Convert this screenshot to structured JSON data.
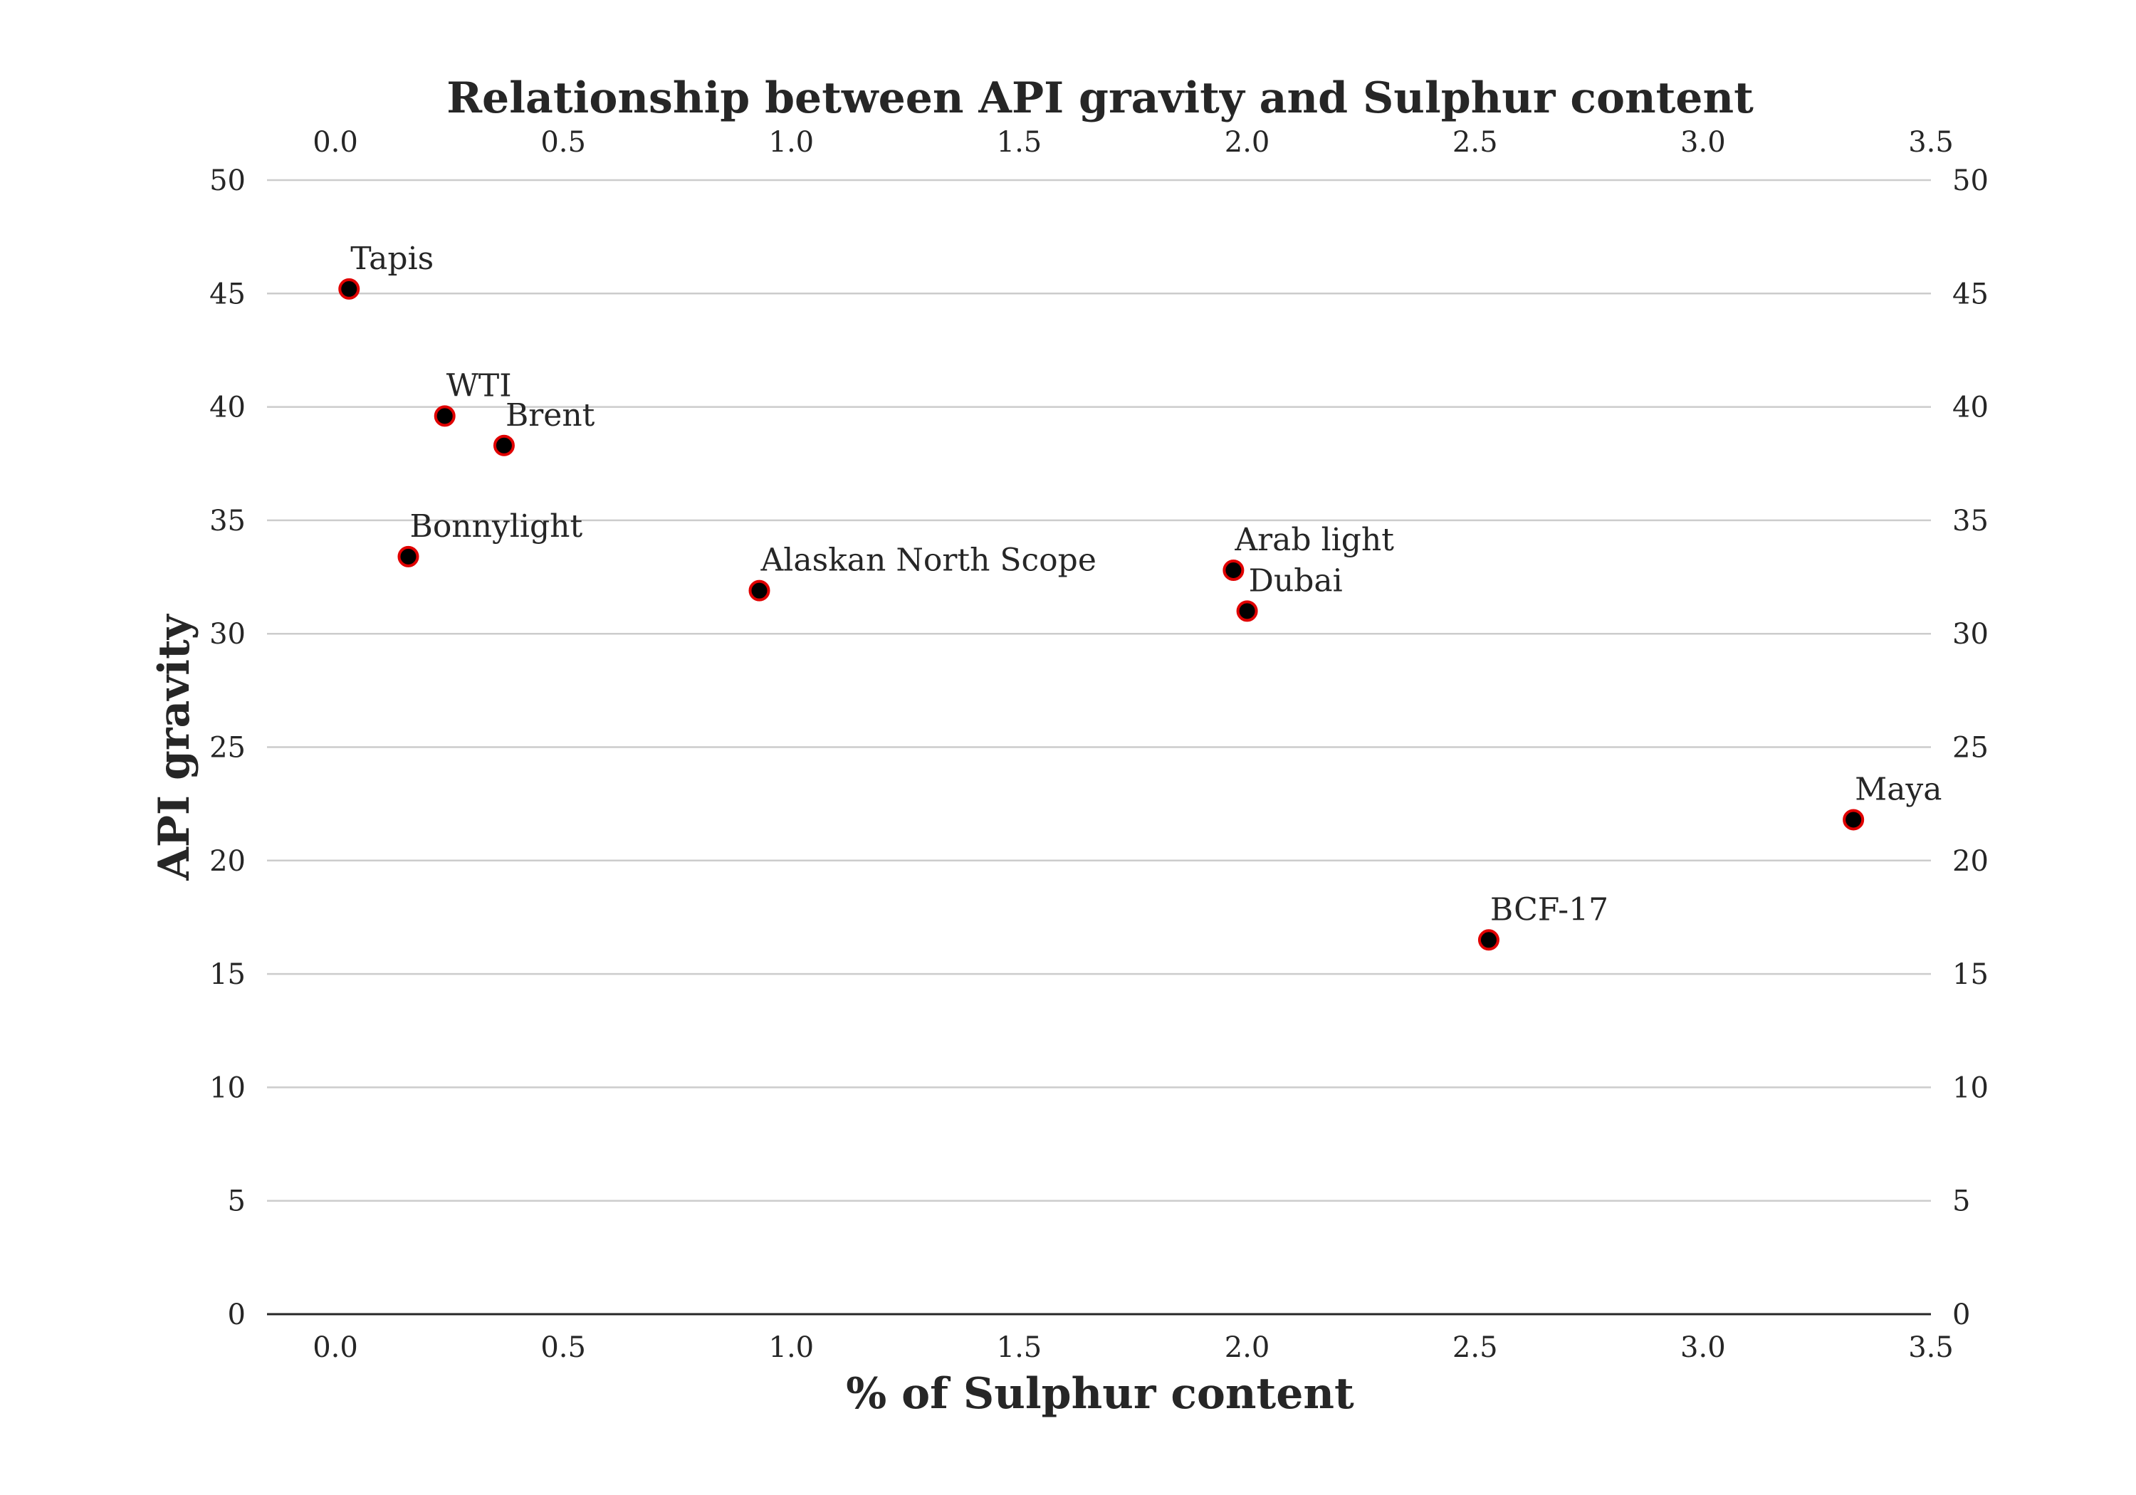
{
  "chart_data": {
    "type": "scatter",
    "title": "Relationship between API gravity and Sulphur content",
    "xlabel": "% of Sulphur content",
    "ylabel": "API gravity",
    "xlim": [
      -0.15,
      3.5
    ],
    "ylim": [
      0,
      50
    ],
    "xticks": [
      0.0,
      0.5,
      1.0,
      1.5,
      2.0,
      2.5,
      3.0,
      3.5
    ],
    "yticks": [
      0,
      5,
      10,
      15,
      20,
      25,
      30,
      35,
      40,
      45,
      50
    ],
    "xtick_labels": [
      "0.0",
      "0.5",
      "1.0",
      "1.5",
      "2.0",
      "2.5",
      "3.0",
      "3.5"
    ],
    "ytick_labels": [
      "0",
      "5",
      "10",
      "15",
      "20",
      "25",
      "30",
      "35",
      "40",
      "45",
      "50"
    ],
    "grid": "horizontal",
    "points": [
      {
        "label": "Tapis",
        "x": 0.03,
        "y": 45.2
      },
      {
        "label": "WTI",
        "x": 0.24,
        "y": 39.6
      },
      {
        "label": "Brent",
        "x": 0.37,
        "y": 38.3
      },
      {
        "label": "Bonnylight",
        "x": 0.16,
        "y": 33.4
      },
      {
        "label": "Alaskan North Scope",
        "x": 0.93,
        "y": 31.9
      },
      {
        "label": "Arab light",
        "x": 1.97,
        "y": 32.8
      },
      {
        "label": "Dubai",
        "x": 2.0,
        "y": 31.0
      },
      {
        "label": "BCF-17",
        "x": 2.53,
        "y": 16.5
      },
      {
        "label": "Maya",
        "x": 3.33,
        "y": 21.8
      }
    ],
    "colors": {
      "marker_fill": "#000000",
      "marker_edge": "#e00000",
      "grid": "#cccccc",
      "axis": "#262626",
      "text": "#262626"
    }
  }
}
